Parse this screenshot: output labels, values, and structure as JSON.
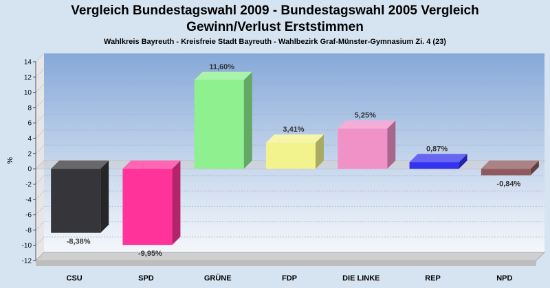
{
  "chart_data": {
    "type": "bar",
    "title": "Vergleich Bundestagswahl 2009 - Bundestagswahl 2005 Vergleich",
    "title_line2": "Gewinn/Verlust Erststimmen",
    "subtitle": "Wahlkreis Bayreuth - Kreisfreie Stadt Bayreuth - Wahlbezirk Graf-Münster-Gymnasium Zi. 4 (23)",
    "ylabel": "%",
    "ylim": [
      -12,
      14
    ],
    "yticks": [
      14,
      12,
      10,
      8,
      6,
      4,
      2,
      0,
      -2,
      -4,
      -6,
      -8,
      -10,
      -12
    ],
    "grid": true,
    "categories": [
      "CSU",
      "SPD",
      "GRÜNE",
      "FDP",
      "DIE LINKE",
      "REP",
      "NPD"
    ],
    "values": [
      -8.38,
      -9.95,
      11.6,
      3.41,
      5.25,
      0.87,
      -0.84
    ],
    "value_labels": [
      "-8,38%",
      "-9,95%",
      "11,60%",
      "3,41%",
      "5,25%",
      "0,87%",
      "-0,84%"
    ],
    "colors": [
      "#36363a",
      "#ff3399",
      "#8ef08e",
      "#f3f38e",
      "#f092c8",
      "#3333ee",
      "#8f5a5e"
    ]
  }
}
